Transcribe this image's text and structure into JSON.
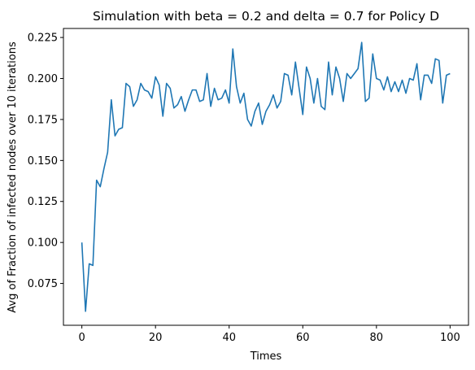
{
  "chart_data": {
    "type": "line",
    "title": "Simulation with beta = 0.2 and delta = 0.7 for Policy D",
    "xlabel": "Times",
    "ylabel": "Avg of Fraction of infected nodes over 10 iterations",
    "xlim": [
      -5,
      105
    ],
    "ylim": [
      0.0495,
      0.2305
    ],
    "xticks": [
      0,
      20,
      40,
      60,
      80,
      100
    ],
    "yticks": [
      0.075,
      0.1,
      0.125,
      0.15,
      0.175,
      0.2,
      0.225
    ],
    "ytick_labels": [
      "0.075",
      "0.100",
      "0.125",
      "0.150",
      "0.175",
      "0.200",
      "0.225"
    ],
    "grid": false,
    "line_color": "#1f77b4",
    "series": [
      {
        "x": [
          0,
          1,
          2,
          3,
          4,
          5,
          6,
          7,
          8,
          9,
          10,
          11,
          12,
          13,
          14,
          15,
          16,
          17,
          18,
          19,
          20,
          21,
          22,
          23,
          24,
          25,
          26,
          27,
          28,
          29,
          30,
          31,
          32,
          33,
          34,
          35,
          36,
          37,
          38,
          39,
          40,
          41,
          42,
          43,
          44,
          45,
          46,
          47,
          48,
          49,
          50,
          51,
          52,
          53,
          54,
          55,
          56,
          57,
          58,
          59,
          60,
          61,
          62,
          63,
          64,
          65,
          66,
          67,
          68,
          69,
          70,
          71,
          72,
          73,
          74,
          75,
          76,
          77,
          78,
          79,
          80,
          81,
          82,
          83,
          84,
          85,
          86,
          87,
          88,
          89,
          90,
          91,
          92,
          93,
          94,
          95,
          96,
          97,
          98,
          99,
          100
        ],
        "values": [
          0.1,
          0.058,
          0.087,
          0.086,
          0.138,
          0.134,
          0.145,
          0.155,
          0.187,
          0.165,
          0.169,
          0.17,
          0.197,
          0.195,
          0.183,
          0.187,
          0.197,
          0.193,
          0.192,
          0.188,
          0.201,
          0.196,
          0.177,
          0.197,
          0.194,
          0.182,
          0.184,
          0.189,
          0.18,
          0.187,
          0.193,
          0.193,
          0.186,
          0.187,
          0.203,
          0.183,
          0.194,
          0.187,
          0.188,
          0.193,
          0.185,
          0.218,
          0.195,
          0.185,
          0.191,
          0.175,
          0.171,
          0.18,
          0.185,
          0.172,
          0.18,
          0.184,
          0.19,
          0.182,
          0.186,
          0.203,
          0.202,
          0.19,
          0.21,
          0.194,
          0.178,
          0.207,
          0.2,
          0.185,
          0.2,
          0.183,
          0.181,
          0.21,
          0.19,
          0.207,
          0.2,
          0.186,
          0.203,
          0.2,
          0.203,
          0.206,
          0.222,
          0.186,
          0.188,
          0.215,
          0.2,
          0.199,
          0.193,
          0.201,
          0.192,
          0.198,
          0.192,
          0.199,
          0.191,
          0.2,
          0.199,
          0.209,
          0.187,
          0.202,
          0.202,
          0.197,
          0.212,
          0.211,
          0.185,
          0.202,
          0.203
        ]
      }
    ]
  }
}
